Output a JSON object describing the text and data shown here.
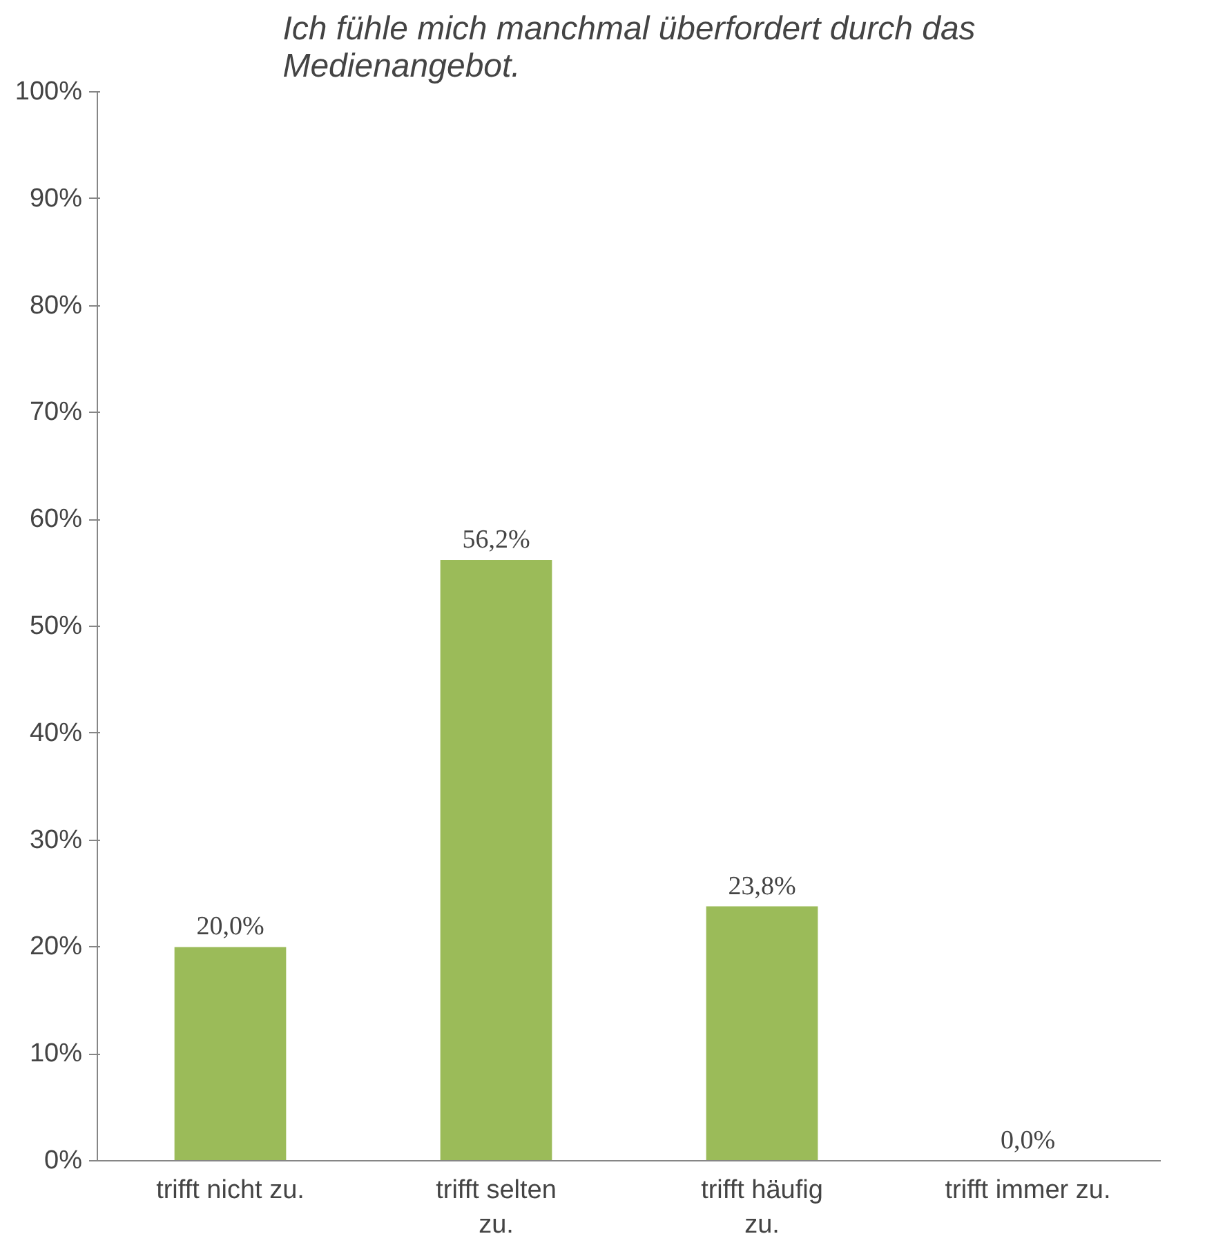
{
  "chart_data": {
    "type": "bar",
    "title": "Ich fühle mich manchmal überfordert durch das Medienangebot.",
    "categories": [
      "trifft nicht zu.",
      "trifft selten zu.",
      "trifft häufig zu.",
      "trifft immer zu."
    ],
    "values": [
      20.0,
      56.2,
      23.8,
      0.0
    ],
    "value_labels": [
      "20,0%",
      "56,2%",
      "23,8%",
      "0,0%"
    ],
    "color": "#9bbb59",
    "ylim": [
      0,
      100
    ],
    "yticks": [
      {
        "value": 0,
        "label": "0%"
      },
      {
        "value": 10,
        "label": "10%"
      },
      {
        "value": 20,
        "label": "20%"
      },
      {
        "value": 30,
        "label": "30%"
      },
      {
        "value": 40,
        "label": "40%"
      },
      {
        "value": 50,
        "label": "50%"
      },
      {
        "value": 60,
        "label": "60%"
      },
      {
        "value": 70,
        "label": "70%"
      },
      {
        "value": 80,
        "label": "80%"
      },
      {
        "value": 90,
        "label": "90%"
      },
      {
        "value": 100,
        "label": "100%"
      }
    ],
    "grid": false
  }
}
